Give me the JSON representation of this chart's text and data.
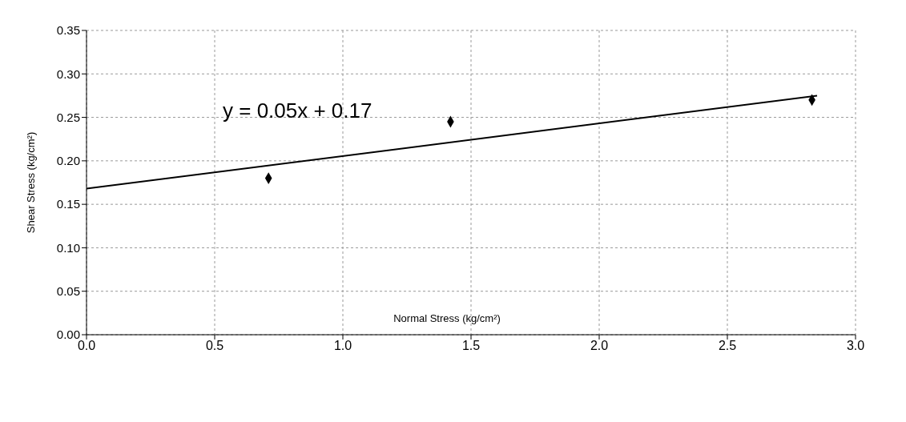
{
  "chart_data": {
    "type": "scatter",
    "xlabel": "Normal Stress (kg/cm²)",
    "ylabel": "Shear Stress (kg/cm²)",
    "annotations": [
      "y = 0.05x + 0.17"
    ],
    "xlim": [
      0,
      3
    ],
    "xticks": [
      {
        "value": 0,
        "label": "0.0"
      },
      {
        "value": 0.5,
        "label": "0.5"
      },
      {
        "value": 1,
        "label": "1.0"
      },
      {
        "value": 1.5,
        "label": "1.5"
      },
      {
        "value": 2,
        "label": "2.0"
      },
      {
        "value": 2.5,
        "label": "2.5"
      },
      {
        "value": 3,
        "label": "3.0"
      }
    ],
    "ylim": [
      0,
      0.35
    ],
    "yticks": [
      {
        "value": 0,
        "label": "0.00"
      },
      {
        "value": 0.05,
        "label": "0.05"
      },
      {
        "value": 0.1,
        "label": "0.10"
      },
      {
        "value": 0.15,
        "label": "0.15"
      },
      {
        "value": 0.2,
        "label": "0.20"
      },
      {
        "value": 0.25,
        "label": "0.25"
      },
      {
        "value": 0.3,
        "label": "0.30"
      },
      {
        "value": 0.35,
        "label": "0.35"
      }
    ],
    "grid": true,
    "series": [
      {
        "marker": "diamond",
        "color": "#000000",
        "x": [
          0.71,
          1.42,
          2.83
        ],
        "values": [
          0.18,
          0.245,
          0.27
        ]
      },
      {
        "type": "line",
        "color": "#000000",
        "x": [
          0,
          2.85
        ],
        "values": [
          0.168,
          0.275
        ]
      }
    ]
  }
}
